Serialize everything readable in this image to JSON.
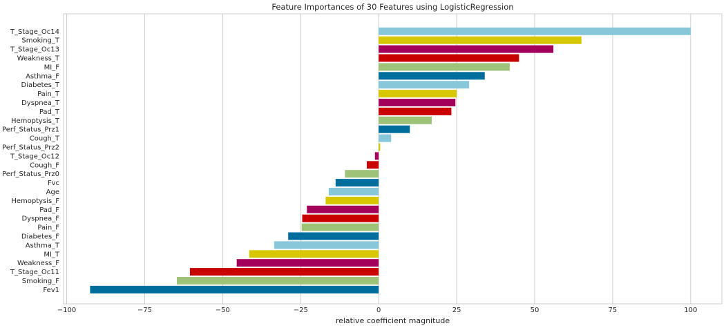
{
  "chart_data": {
    "type": "bar",
    "orientation": "horizontal",
    "title": "Feature Importances of 30 Features using LogisticRegression",
    "xlabel": "relative coefficient magnitude",
    "ylabel": "",
    "xlim": [
      -101,
      110
    ],
    "xticks": [
      -100,
      -75,
      -50,
      -25,
      0,
      25,
      50,
      75,
      100
    ],
    "xtick_labels": [
      "−100",
      "−75",
      "−50",
      "−25",
      "0",
      "25",
      "50",
      "75",
      "100"
    ],
    "grid": "vertical",
    "palette": [
      "#87c7d9",
      "#d6c700",
      "#a3005c",
      "#c90000",
      "#9ec277",
      "#006e9c"
    ],
    "categories": [
      "T_Stage_Oc14",
      "Smoking_T",
      "T_Stage_Oc13",
      "Weakness_T",
      "MI_F",
      "Asthma_F",
      "Diabetes_T",
      "Pain_T",
      "Dyspnea_T",
      "Pad_T",
      "Hemoptysis_T",
      "Perf_Status_Prz1",
      "Cough_T",
      "Perf_Status_Prz2",
      "T_Stage_Oc12",
      "Cough_F",
      "Perf_Status_Prz0",
      "Fvc",
      "Age",
      "Hemoptysis_F",
      "Pad_F",
      "Dyspnea_F",
      "Pain_F",
      "Diabetes_F",
      "Asthma_T",
      "MI_T",
      "Weakness_F",
      "T_Stage_Oc11",
      "Smoking_F",
      "Fev1"
    ],
    "values": [
      100,
      65,
      56,
      45,
      42,
      34,
      29,
      25,
      24.6,
      23.3,
      17,
      10,
      4,
      0.5,
      -1.2,
      -3.8,
      -10.8,
      -13.8,
      -16,
      -17,
      -23,
      -24.5,
      -24.7,
      -29,
      -33.5,
      -41.5,
      -45.5,
      -60.5,
      -64.7,
      -92.5
    ]
  }
}
